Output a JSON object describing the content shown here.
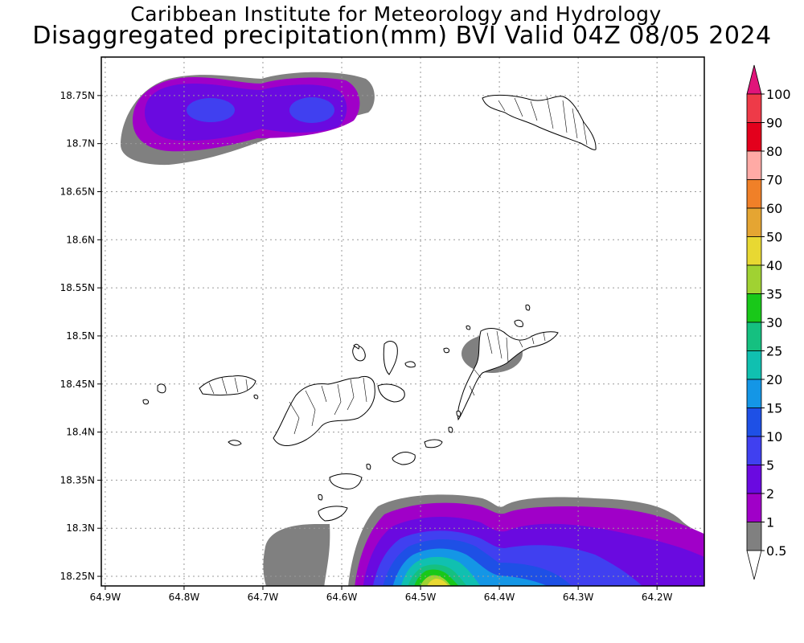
{
  "title": {
    "line1": "Caribbean Institute for Meteorology and Hydrology",
    "line2": "Disaggregated precipitation(mm) BVI Valid 04Z 08/05 2024"
  },
  "map": {
    "variable": "precipitation (mm)",
    "lat_range": [
      18.24,
      18.79
    ],
    "lon_range": [
      -64.905,
      -64.14
    ],
    "grid": true,
    "lat_ticks": [
      {
        "value": 18.25,
        "label": "18.25N"
      },
      {
        "value": 18.3,
        "label": "18.3N"
      },
      {
        "value": 18.35,
        "label": "18.35N"
      },
      {
        "value": 18.4,
        "label": "18.4N"
      },
      {
        "value": 18.45,
        "label": "18.45N"
      },
      {
        "value": 18.5,
        "label": "18.5N"
      },
      {
        "value": 18.55,
        "label": "18.55N"
      },
      {
        "value": 18.6,
        "label": "18.6N"
      },
      {
        "value": 18.65,
        "label": "18.65N"
      },
      {
        "value": 18.7,
        "label": "18.7N"
      },
      {
        "value": 18.75,
        "label": "18.75N"
      }
    ],
    "lon_ticks": [
      {
        "value": -64.9,
        "label": "64.9W"
      },
      {
        "value": -64.8,
        "label": "64.8W"
      },
      {
        "value": -64.7,
        "label": "64.7W"
      },
      {
        "value": -64.6,
        "label": "64.6W"
      },
      {
        "value": -64.5,
        "label": "64.5W"
      },
      {
        "value": -64.4,
        "label": "64.4W"
      },
      {
        "value": -64.3,
        "label": "64.3W"
      },
      {
        "value": -64.2,
        "label": "64.2W"
      }
    ]
  },
  "colorbar": {
    "levels": [
      {
        "label": "100",
        "color": "#ee3a48"
      },
      {
        "label": "90",
        "color": "#e3001c"
      },
      {
        "label": "80",
        "color": "#ffaaa5"
      },
      {
        "label": "70",
        "color": "#f08028"
      },
      {
        "label": "60",
        "color": "#e5a532"
      },
      {
        "label": "50",
        "color": "#e8d832"
      },
      {
        "label": "40",
        "color": "#a0d232"
      },
      {
        "label": "35",
        "color": "#19c819"
      },
      {
        "label": "30",
        "color": "#15c080"
      },
      {
        "label": "25",
        "color": "#10c0b0"
      },
      {
        "label": "20",
        "color": "#1496e6"
      },
      {
        "label": "15",
        "color": "#1e50e6"
      },
      {
        "label": "10",
        "color": "#4040f0"
      },
      {
        "label": "5",
        "color": "#6a0ae0"
      },
      {
        "label": "2",
        "color": "#a000c8"
      },
      {
        "label": "1",
        "color": "#808080"
      },
      {
        "label": "0.5",
        "color": "#ffffff"
      }
    ],
    "top_arrow_color": "#e0147a"
  }
}
